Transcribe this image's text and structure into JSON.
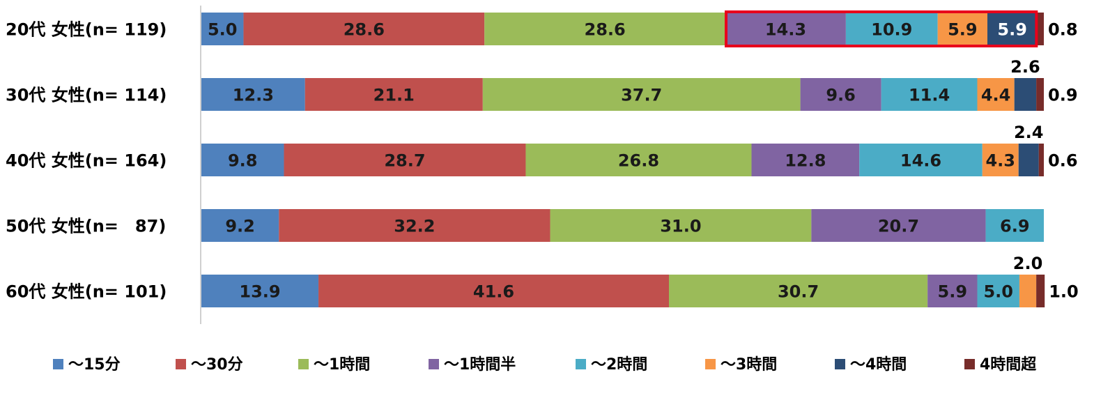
{
  "chart_data": {
    "type": "bar",
    "orientation": "horizontal",
    "stacked": true,
    "categories": [
      "20代 女性(n= 119)",
      "30代 女性(n= 114)",
      "40代 女性(n= 164)",
      "50代 女性(n=　87)",
      "60代 女性(n= 101)"
    ],
    "series": [
      {
        "name": "～15分",
        "color": "#4f81bd",
        "values": [
          5.0,
          12.3,
          9.8,
          9.2,
          13.9
        ]
      },
      {
        "name": "～30分",
        "color": "#c0504d",
        "values": [
          28.6,
          21.1,
          28.7,
          32.2,
          41.6
        ]
      },
      {
        "name": "～1時間",
        "color": "#9bbb59",
        "values": [
          28.6,
          37.7,
          26.8,
          31.0,
          30.7
        ]
      },
      {
        "name": "～1時間半",
        "color": "#8064a2",
        "values": [
          14.3,
          9.6,
          12.8,
          20.7,
          5.9
        ]
      },
      {
        "name": "～2時間",
        "color": "#4bacc6",
        "values": [
          10.9,
          11.4,
          14.6,
          6.9,
          5.0
        ]
      },
      {
        "name": "～3時間",
        "color": "#f79646",
        "values": [
          5.9,
          4.4,
          4.3,
          0,
          2.0
        ]
      },
      {
        "name": "～4時間",
        "color": "#2c4d75",
        "values": [
          5.9,
          2.6,
          2.4,
          0,
          0
        ]
      },
      {
        "name": "4時間超",
        "color": "#772c2a",
        "values": [
          0.8,
          0.9,
          0.6,
          0,
          1.0
        ]
      }
    ],
    "xlim": [
      0,
      100
    ],
    "legend_position": "bottom",
    "grid": false,
    "highlight": {
      "category": "20代 女性(n= 119)",
      "series": [
        "～1時間半",
        "～2時間",
        "～3時間",
        "～4時間"
      ],
      "color": "#e8001c"
    }
  }
}
